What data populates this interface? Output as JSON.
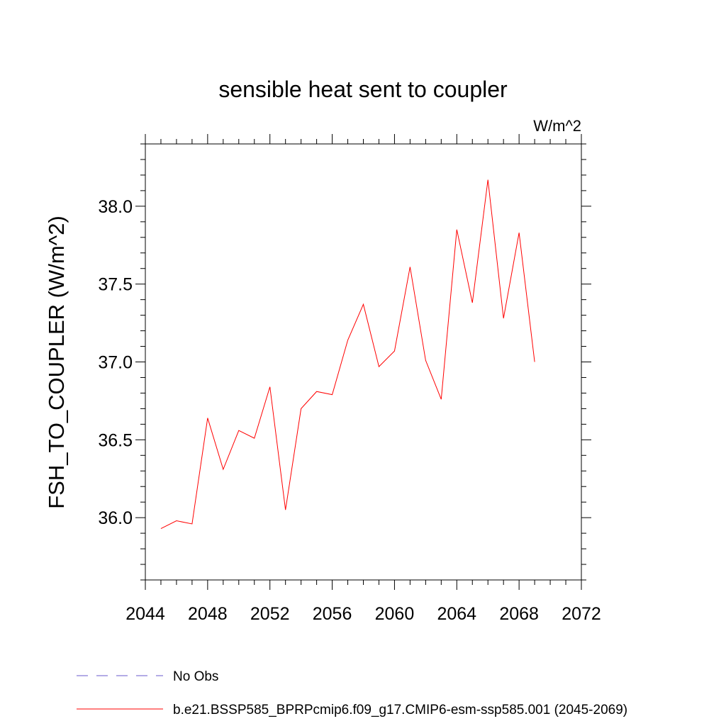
{
  "chart_data": {
    "type": "line",
    "title": "sensible heat sent to coupler",
    "units": "W/m^2",
    "xlabel": "",
    "ylabel": "FSH_TO_COUPLER  (W/m^2)",
    "xlim": [
      2044,
      2072
    ],
    "ylim": [
      35.6,
      38.4
    ],
    "xticks": [
      2044,
      2048,
      2052,
      2056,
      2060,
      2064,
      2068,
      2072
    ],
    "xtick_labels": [
      "2044",
      "2048",
      "2052",
      "2056",
      "2060",
      "2064",
      "2068",
      "2072"
    ],
    "yticks": [
      36.0,
      36.5,
      37.0,
      37.5,
      38.0
    ],
    "ytick_labels": [
      "36.0",
      "36.5",
      "37.0",
      "37.5",
      "38.0"
    ],
    "grid": false,
    "legend_position": "bottom-left",
    "series": [
      {
        "name": "No Obs",
        "color": "#6a5acd",
        "dash": "dashed",
        "x": [],
        "values": []
      },
      {
        "name": "b.e21.BSSP585_BPRPcmip6.f09_g17.CMIP6-esm-ssp585.001 (2045-2069)",
        "color": "#ff0000",
        "dash": "solid",
        "x": [
          2045,
          2046,
          2047,
          2048,
          2049,
          2050,
          2051,
          2052,
          2053,
          2054,
          2055,
          2056,
          2057,
          2058,
          2059,
          2060,
          2061,
          2062,
          2063,
          2064,
          2065,
          2066,
          2067,
          2068,
          2069
        ],
        "values": [
          35.93,
          35.98,
          35.96,
          36.64,
          36.31,
          36.56,
          36.51,
          36.84,
          36.05,
          36.7,
          36.81,
          36.79,
          37.14,
          37.37,
          36.97,
          37.07,
          37.61,
          37.01,
          36.76,
          37.85,
          37.38,
          38.17,
          37.28,
          37.83,
          37.0
        ]
      }
    ]
  }
}
